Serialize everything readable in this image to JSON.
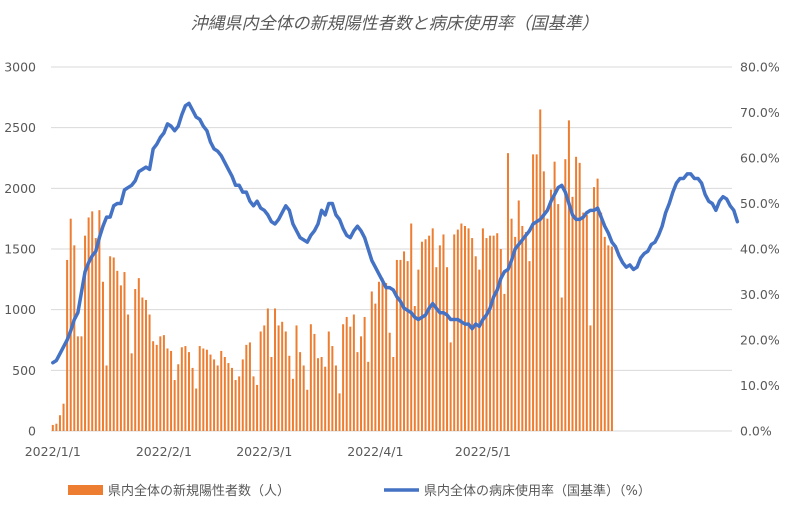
{
  "chart_data": {
    "type": "bar+line",
    "title": "沖縄県内全体の新規陽性者数と病床使用率（国基準）",
    "start_date": "2022-01-01",
    "x_tick_labels": [
      "2022/1/1",
      "2022/2/1",
      "2022/3/1",
      "2022/4/1",
      "2022/5/1"
    ],
    "y_left": {
      "min": 0,
      "max": 3000,
      "ticks": [
        "0",
        "500",
        "1000",
        "1500",
        "2000",
        "2500",
        "3000"
      ]
    },
    "y_right": {
      "min": 0,
      "max": 80,
      "ticks": [
        "0.0%",
        "10.0%",
        "20.0%",
        "30.0%",
        "40.0%",
        "50.0%",
        "60.0%",
        "70.0%",
        "80.0%"
      ]
    },
    "grid": true,
    "legend_position": "bottom",
    "series": [
      {
        "name": "県内全体の新規陽性者数（人）",
        "kind": "bar",
        "axis": "left",
        "color": "#ED7D31",
        "values": [
          50,
          60,
          130,
          225,
          1410,
          1750,
          1530,
          780,
          780,
          1610,
          1760,
          1810,
          1590,
          1820,
          1230,
          540,
          1440,
          1430,
          1320,
          1200,
          1310,
          960,
          640,
          1170,
          1260,
          1100,
          1080,
          960,
          740,
          710,
          780,
          790,
          680,
          660,
          420,
          550,
          690,
          700,
          650,
          520,
          350,
          700,
          680,
          670,
          630,
          590,
          540,
          660,
          610,
          560,
          520,
          420,
          450,
          590,
          710,
          730,
          450,
          380,
          820,
          870,
          1010,
          610,
          1010,
          870,
          900,
          820,
          620,
          430,
          870,
          650,
          540,
          340,
          880,
          800,
          600,
          610,
          530,
          820,
          700,
          540,
          310,
          880,
          940,
          860,
          960,
          650,
          780,
          940,
          570,
          1150,
          1050,
          1230,
          1260,
          1220,
          810,
          610,
          1410,
          1410,
          1480,
          1400,
          1710,
          1030,
          1330,
          1560,
          1580,
          1610,
          1670,
          1350,
          1530,
          1620,
          1350,
          730,
          1620,
          1660,
          1710,
          1690,
          1670,
          1590,
          1440,
          1330,
          1670,
          1590,
          1610,
          1610,
          1630,
          1500,
          1130,
          2290,
          1750,
          1600,
          1900,
          1690,
          1640,
          1400,
          2280,
          2280,
          2650,
          2140,
          1750,
          1990,
          2220,
          1870,
          1100,
          2240,
          2560,
          1930,
          2260,
          2210,
          1800,
          1780,
          870,
          2010,
          2080,
          1800,
          1600,
          1530,
          1520
        ]
      },
      {
        "name": "県内全体の病床使用率（国基準）（%）",
        "kind": "line",
        "axis": "right",
        "color": "#4472C4",
        "values": [
          15,
          15.5,
          17,
          18.5,
          20,
          22,
          24.5,
          26,
          30.5,
          35,
          37,
          38.5,
          39.5,
          42.5,
          45,
          47,
          47,
          49.5,
          50,
          50,
          53,
          53.5,
          54,
          55,
          57,
          57.5,
          58,
          57.5,
          62,
          63,
          64.5,
          65.5,
          67.5,
          67,
          66,
          67,
          69.5,
          71.5,
          72,
          70.5,
          69,
          68.5,
          67,
          66,
          63.5,
          62,
          61.5,
          60.5,
          59,
          57.5,
          56,
          54,
          54,
          52.5,
          52.5,
          50.5,
          49.5,
          50.5,
          49,
          48.5,
          47.5,
          46,
          45.5,
          46.5,
          48,
          49.5,
          48.5,
          45.5,
          44,
          42.5,
          42,
          41.5,
          43,
          44,
          45.5,
          48.5,
          47.5,
          50,
          50,
          47.5,
          46.5,
          44.5,
          43,
          42.5,
          44,
          45,
          44,
          42.5,
          40,
          37.5,
          36,
          34.5,
          33,
          31.5,
          31.5,
          31,
          29.5,
          28.5,
          27,
          26.5,
          26,
          25,
          24.5,
          25,
          25.5,
          27,
          28,
          27,
          26,
          26,
          25.5,
          24.5,
          24.5,
          24.5,
          24,
          23.5,
          23.5,
          22.5,
          23.5,
          23,
          24.5,
          25.5,
          27,
          29.5,
          31,
          33.5,
          35,
          35.5,
          37.5,
          40,
          41,
          42,
          43,
          44,
          45.5,
          46,
          46.5,
          47.5,
          48.5,
          50.5,
          52,
          53.5,
          54,
          52.5,
          50,
          47.5,
          46.5,
          46.5,
          47,
          48,
          48.5,
          48.5,
          49,
          47,
          45,
          43.5,
          41.5,
          40.5,
          38.5,
          37,
          36,
          36.5,
          35.5,
          36,
          38,
          39,
          39.5,
          41,
          41.5,
          43,
          45,
          48,
          50,
          52.5,
          54.5,
          55.5,
          55.5,
          56.5,
          56.5,
          55.5,
          55.5,
          54.5,
          52,
          50.5,
          50,
          48.5,
          50.5,
          51.5,
          51,
          49.5,
          48.5,
          46
        ]
      }
    ]
  }
}
